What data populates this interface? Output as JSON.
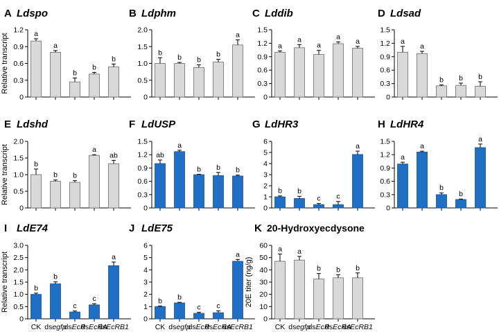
{
  "figure": {
    "categories": [
      "CK",
      "dsegfp",
      "dsEcR",
      "dsEcRA",
      "dsEcRB1"
    ],
    "category_parts": [
      {
        "prefix": "CK",
        "italic": ""
      },
      {
        "prefix": "ds",
        "italic": "egfp"
      },
      {
        "prefix": "ds",
        "italic": "EcR"
      },
      {
        "prefix": "ds",
        "italic": "EcRA"
      },
      {
        "prefix": "ds",
        "italic": "EcRB1"
      }
    ],
    "colors": {
      "gray_bar": "#d9d9d9",
      "blue_bar": "#1f6fc5",
      "axis": "#000000"
    }
  },
  "chart_data": [
    {
      "type": "bar",
      "panel": "A",
      "title": "Ldspo",
      "title_italic": true,
      "ylabel": "Relative transcript",
      "ylim": [
        0,
        1.2
      ],
      "yticks": [
        0,
        0.3,
        0.6,
        0.9,
        1.2
      ],
      "ytick_labels": [
        "0",
        "0.3",
        "0.6",
        "0.9",
        "1.2"
      ],
      "values": [
        1.0,
        0.8,
        0.27,
        0.41,
        0.54
      ],
      "errors": [
        0.04,
        0.03,
        0.07,
        0.03,
        0.05
      ],
      "letters": [
        "a",
        "a",
        "b",
        "b",
        "b"
      ],
      "color": "gray"
    },
    {
      "type": "bar",
      "panel": "B",
      "title": "Ldphm",
      "title_italic": true,
      "ylabel": "",
      "ylim": [
        0,
        2.0
      ],
      "yticks": [
        0,
        0.5,
        1.0,
        1.5,
        2.0
      ],
      "ytick_labels": [
        "0",
        "0.5",
        "1.0",
        "1.5",
        "2.0"
      ],
      "values": [
        1.0,
        1.0,
        0.88,
        1.04,
        1.55
      ],
      "errors": [
        0.17,
        0.03,
        0.08,
        0.08,
        0.15
      ],
      "letters": [
        "b",
        "b",
        "b",
        "b",
        "a"
      ],
      "color": "gray"
    },
    {
      "type": "bar",
      "panel": "C",
      "title": "Lddib",
      "title_italic": true,
      "ylabel": "",
      "ylim": [
        0,
        1.5
      ],
      "yticks": [
        0,
        0.3,
        0.6,
        0.9,
        1.2,
        1.5
      ],
      "ytick_labels": [
        "0",
        "0.3",
        "0.6",
        "0.9",
        "1.2",
        "1.5"
      ],
      "values": [
        1.0,
        1.1,
        0.95,
        1.19,
        1.09
      ],
      "errors": [
        0.03,
        0.07,
        0.09,
        0.04,
        0.04
      ],
      "letters": [
        "a",
        "a",
        "a",
        "a",
        "a"
      ],
      "color": "gray"
    },
    {
      "type": "bar",
      "panel": "D",
      "title": "Ldsad",
      "title_italic": true,
      "ylabel": "",
      "ylim": [
        0,
        1.5
      ],
      "yticks": [
        0,
        0.3,
        0.6,
        0.9,
        1.2,
        1.5
      ],
      "ytick_labels": [
        "0",
        "0.3",
        "0.6",
        "0.9",
        "1.2",
        "1.5"
      ],
      "values": [
        1.0,
        0.97,
        0.25,
        0.26,
        0.24
      ],
      "errors": [
        0.13,
        0.05,
        0.02,
        0.05,
        0.1
      ],
      "letters": [
        "a",
        "a",
        "b",
        "b",
        "b"
      ],
      "color": "gray"
    },
    {
      "type": "bar",
      "panel": "E",
      "title": "Ldshd",
      "title_italic": true,
      "ylabel": "Relative transcript",
      "ylim": [
        0,
        2.0
      ],
      "yticks": [
        0,
        0.5,
        1.0,
        1.5,
        2.0
      ],
      "ytick_labels": [
        "0",
        "0.5",
        "1.0",
        "1.5",
        "2.0"
      ],
      "values": [
        1.0,
        0.8,
        0.77,
        1.58,
        1.33
      ],
      "errors": [
        0.17,
        0.04,
        0.05,
        0.02,
        0.1
      ],
      "letters": [
        "b",
        "b",
        "b",
        "a",
        "ab"
      ],
      "color": "gray"
    },
    {
      "type": "bar",
      "panel": "F",
      "title": "LdUSP",
      "title_italic": true,
      "ylabel": "",
      "ylim": [
        0,
        1.5
      ],
      "yticks": [
        0,
        0.3,
        0.6,
        0.9,
        1.2,
        1.5
      ],
      "ytick_labels": [
        "0",
        "0.3",
        "0.6",
        "0.9",
        "1.2",
        "1.5"
      ],
      "values": [
        1.0,
        1.27,
        0.75,
        0.73,
        0.72
      ],
      "errors": [
        0.08,
        0.03,
        0.01,
        0.07,
        0.02
      ],
      "letters": [
        "ab",
        "a",
        "b",
        "b",
        "b"
      ],
      "color": "blue"
    },
    {
      "type": "bar",
      "panel": "G",
      "title": "LdHR3",
      "title_italic": true,
      "ylabel": "",
      "ylim": [
        0,
        6
      ],
      "yticks": [
        0,
        1,
        2,
        3,
        4,
        5,
        6
      ],
      "ytick_labels": [
        "0",
        "1",
        "2",
        "3",
        "4",
        "5",
        "6"
      ],
      "values": [
        1.0,
        0.85,
        0.3,
        0.3,
        4.82
      ],
      "errors": [
        0.08,
        0.2,
        0.1,
        0.28,
        0.3
      ],
      "letters": [
        "b",
        "b",
        "c",
        "c",
        "a"
      ],
      "color": "blue"
    },
    {
      "type": "bar",
      "panel": "H",
      "title": "LdHR4",
      "title_italic": true,
      "ylabel": "",
      "ylim": [
        0,
        1.5
      ],
      "yticks": [
        0,
        0.3,
        0.6,
        0.9,
        1.2,
        1.5
      ],
      "ytick_labels": [
        "0",
        "0.3",
        "0.6",
        "0.9",
        "1.2",
        "1.5"
      ],
      "values": [
        0.99,
        1.26,
        0.3,
        0.19,
        1.36
      ],
      "errors": [
        0.04,
        0.02,
        0.04,
        0.01,
        0.08
      ],
      "letters": [
        "a",
        "a",
        "b",
        "b",
        "a"
      ],
      "color": "blue"
    },
    {
      "type": "bar",
      "panel": "I",
      "title": "LdE74",
      "title_italic": true,
      "ylabel": "Relative transcript",
      "ylim": [
        0,
        3.0
      ],
      "yticks": [
        0,
        0.5,
        1.0,
        1.5,
        2.0,
        2.5,
        3.0
      ],
      "ytick_labels": [
        "0",
        "0.5",
        "1.0",
        "1.5",
        "2.0",
        "2.5",
        "3.0"
      ],
      "values": [
        1.0,
        1.43,
        0.28,
        0.57,
        2.17
      ],
      "errors": [
        0.05,
        0.08,
        0.04,
        0.05,
        0.15
      ],
      "letters": [
        "b",
        "b",
        "c",
        "c",
        "a"
      ],
      "color": "blue",
      "xticks_shown": true
    },
    {
      "type": "bar",
      "panel": "J",
      "title": "LdE75",
      "title_italic": true,
      "ylabel": "",
      "ylim": [
        0,
        6
      ],
      "yticks": [
        0,
        1,
        2,
        3,
        4,
        5,
        6
      ],
      "ytick_labels": [
        "0",
        "1",
        "2",
        "3",
        "4",
        "5",
        "6"
      ],
      "values": [
        1.0,
        1.3,
        0.45,
        0.5,
        4.7
      ],
      "errors": [
        0.05,
        0.05,
        0.08,
        0.15,
        0.15
      ],
      "letters": [
        "b",
        "b",
        "c",
        "c",
        "a"
      ],
      "color": "blue",
      "xticks_shown": true
    },
    {
      "type": "bar",
      "panel": "K",
      "title": "20-Hydroxyecdysone",
      "title_italic": false,
      "ylabel": "20E titer (ng/g)",
      "ylim": [
        0,
        60
      ],
      "yticks": [
        0,
        10,
        20,
        30,
        40,
        50,
        60
      ],
      "ytick_labels": [
        "0",
        "10",
        "20",
        "30",
        "40",
        "50",
        "60"
      ],
      "values": [
        47,
        48,
        32.5,
        33.5,
        33.5
      ],
      "errors": [
        6,
        3,
        4.5,
        2.5,
        4
      ],
      "letters": [
        "a",
        "a",
        "b",
        "b",
        "b"
      ],
      "color": "gray",
      "xticks_shown": true
    }
  ]
}
